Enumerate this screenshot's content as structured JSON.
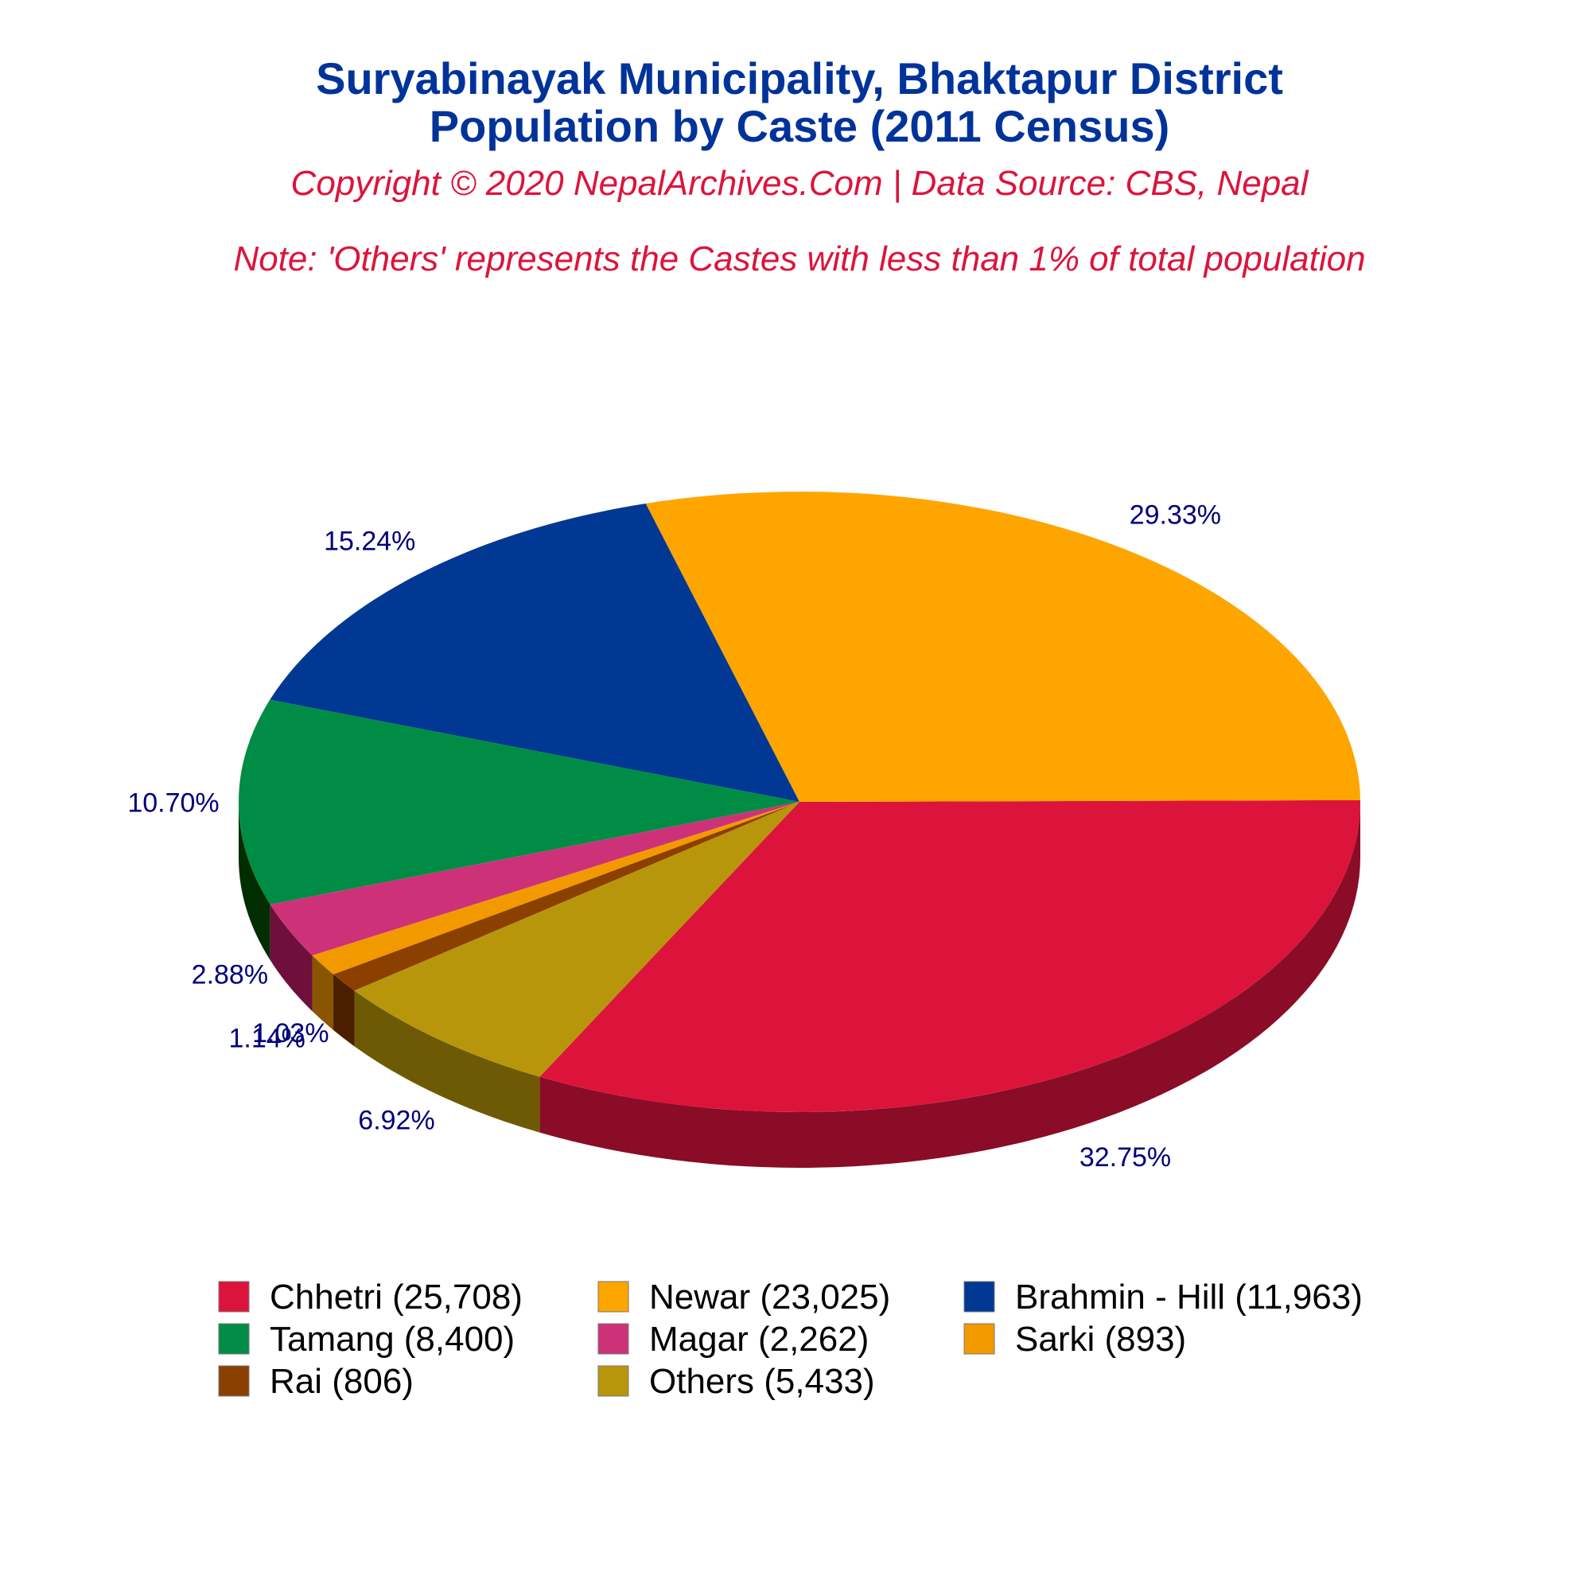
{
  "chart_data": {
    "type": "pie",
    "title": "Suryabinayak Municipality, Bhaktapur District",
    "subtitle": "Population by Caste (2011 Census)",
    "copyright": "Copyright © 2020 NepalArchives.Com | Data Source: CBS, Nepal",
    "note": "Note: 'Others' represents the Castes with less than 1% of total population",
    "slices": [
      {
        "label": "Chhetri",
        "value": 25708,
        "percent_label": "32.75%",
        "legend": "Chhetri (25,708)",
        "color": "#dc143c",
        "side": "#8a0c26"
      },
      {
        "label": "Newar",
        "value": 23025,
        "percent_label": "29.33%",
        "legend": "Newar (23,025)",
        "color": "#ffa500",
        "side": "#a34b00"
      },
      {
        "label": "Brahmin - Hill",
        "value": 11963,
        "percent_label": "15.24%",
        "legend": "Brahmin - Hill (11,963)",
        "color": "#003893",
        "side": "#000033"
      },
      {
        "label": "Tamang",
        "value": 8400,
        "percent_label": "10.70%",
        "legend": "Tamang (8,400)",
        "color": "#008c45",
        "side": "#002e00"
      },
      {
        "label": "Magar",
        "value": 2262,
        "percent_label": "2.88%",
        "legend": "Magar (2,262)",
        "color": "#cd3278",
        "side": "#6e0f3c"
      },
      {
        "label": "Sarki",
        "value": 893,
        "percent_label": "1.14%",
        "legend": "Sarki (893)",
        "color": "#f29900",
        "side": "#8a5500"
      },
      {
        "label": "Rai",
        "value": 806,
        "percent_label": "1.03%",
        "legend": "Rai (806)",
        "color": "#8b4000",
        "side": "#4a2000"
      },
      {
        "label": "Others",
        "value": 5433,
        "percent_label": "6.92%",
        "legend": "Others (5,433)",
        "color": "#b8960b",
        "side": "#6e5a05"
      }
    ],
    "legend_position": "bottom"
  }
}
